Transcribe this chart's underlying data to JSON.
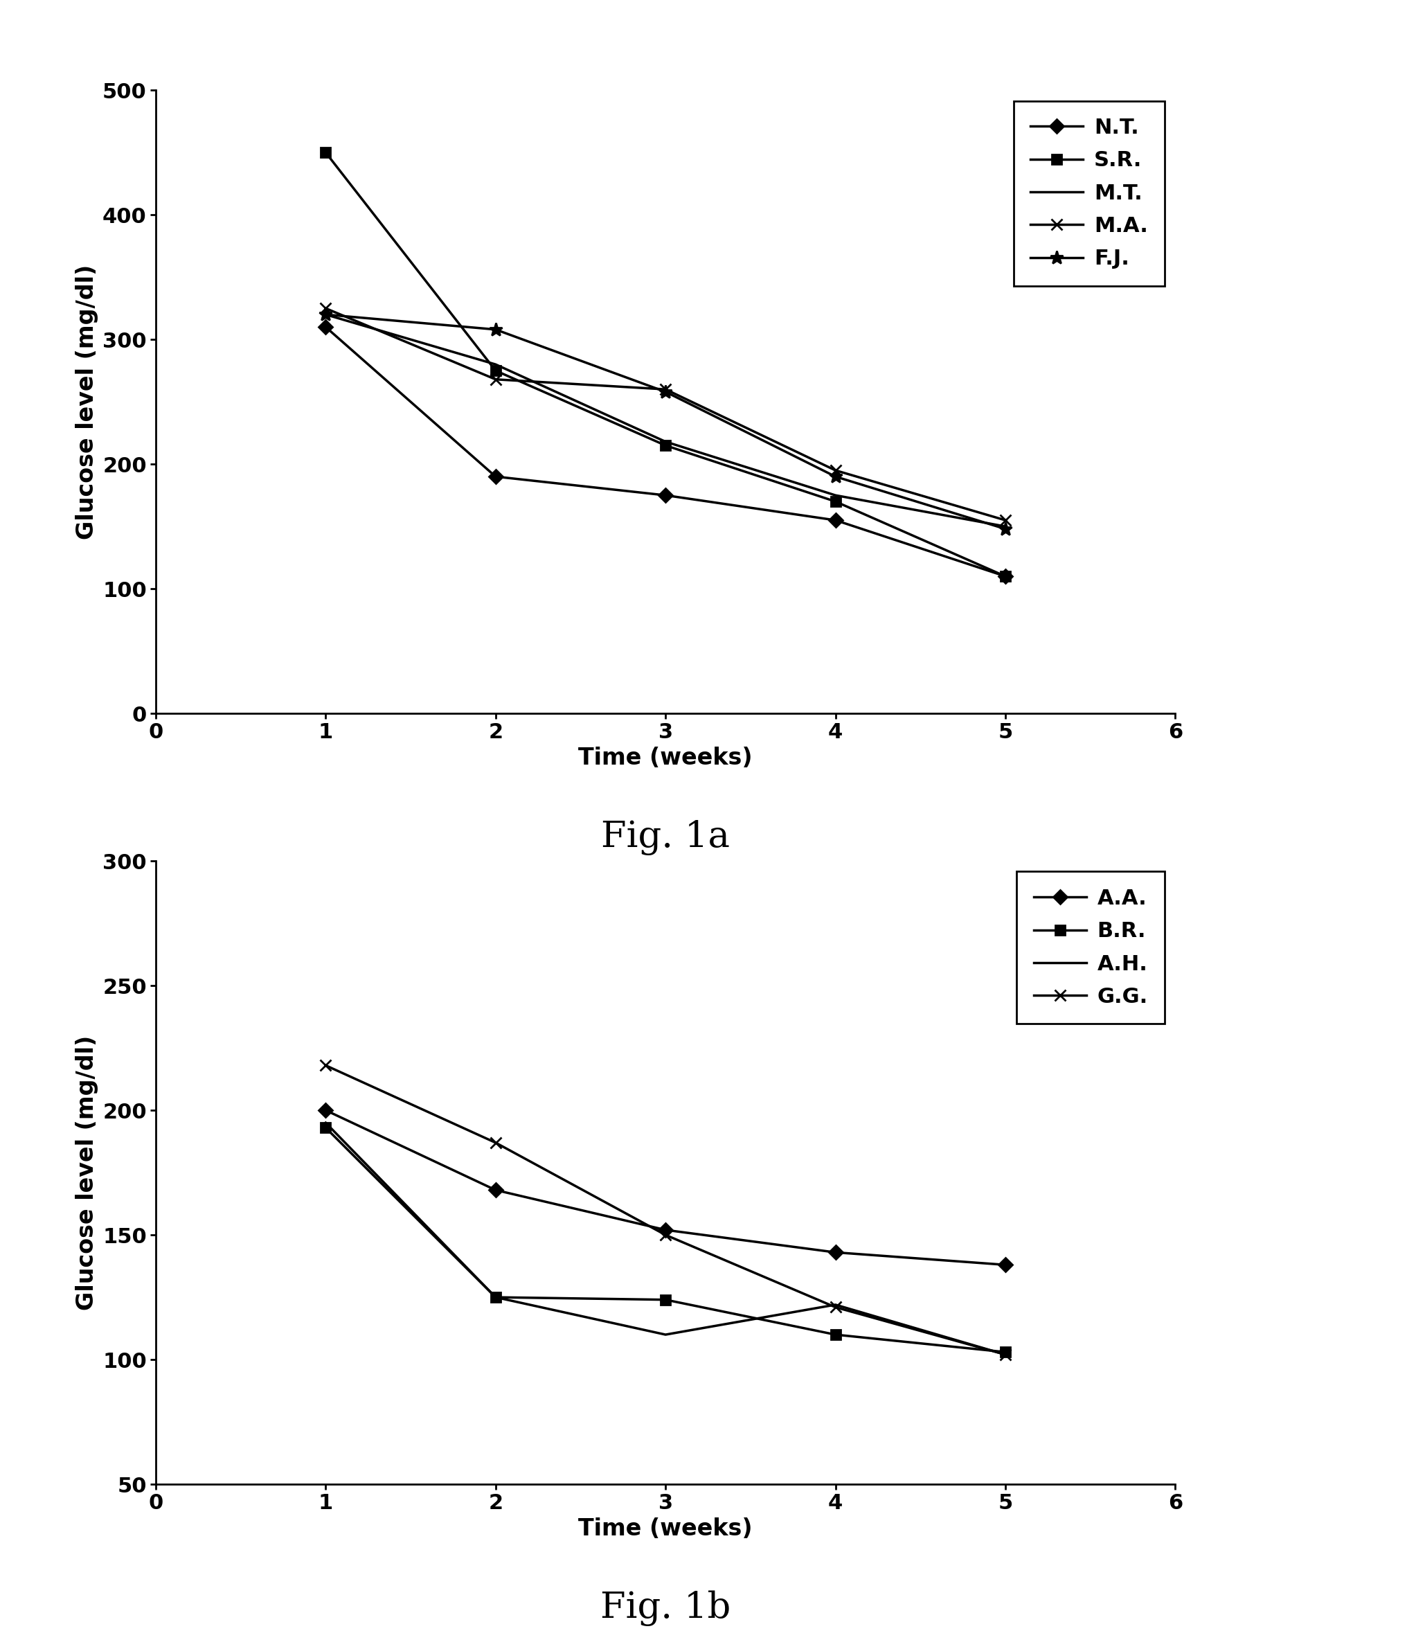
{
  "fig1a": {
    "title": "Fig. 1a",
    "xlabel": "Time (weeks)",
    "ylabel": "Glucose level (mg/dl)",
    "xlim": [
      0,
      6
    ],
    "ylim": [
      0,
      500
    ],
    "yticks": [
      0,
      100,
      200,
      300,
      400,
      500
    ],
    "xticks": [
      0,
      1,
      2,
      3,
      4,
      5,
      6
    ],
    "series": [
      {
        "label": "N.T.",
        "x": [
          1,
          2,
          3,
          4,
          5
        ],
        "y": [
          310,
          190,
          175,
          155,
          110
        ],
        "marker": "D",
        "markersize": 10,
        "linewidth": 2.5,
        "color": "#000000"
      },
      {
        "label": "S.R.",
        "x": [
          1,
          2,
          3,
          4,
          5
        ],
        "y": [
          450,
          275,
          215,
          170,
          110
        ],
        "marker": "s",
        "markersize": 10,
        "linewidth": 2.5,
        "color": "#000000"
      },
      {
        "label": "M.T.",
        "x": [
          1,
          2,
          3,
          4,
          5
        ],
        "y": [
          320,
          280,
          218,
          175,
          150
        ],
        "marker": null,
        "markersize": 0,
        "linewidth": 2.5,
        "color": "#000000"
      },
      {
        "label": "M.A.",
        "x": [
          1,
          2,
          3,
          4,
          5
        ],
        "y": [
          325,
          268,
          260,
          195,
          155
        ],
        "marker": "x",
        "markersize": 12,
        "linewidth": 2.5,
        "color": "#000000"
      },
      {
        "label": "F.J.",
        "x": [
          1,
          2,
          3,
          4,
          5
        ],
        "y": [
          320,
          308,
          258,
          190,
          148
        ],
        "marker": "*",
        "markersize": 14,
        "linewidth": 2.5,
        "color": "#000000"
      }
    ]
  },
  "fig1b": {
    "title": "Fig. 1b",
    "xlabel": "Time (weeks)",
    "ylabel": "Glucose level (mg/dl)",
    "xlim": [
      0,
      6
    ],
    "ylim": [
      50,
      300
    ],
    "yticks": [
      50,
      100,
      150,
      200,
      250,
      300
    ],
    "xticks": [
      0,
      1,
      2,
      3,
      4,
      5,
      6
    ],
    "series": [
      {
        "label": "A.A.",
        "x": [
          1,
          2,
          3,
          4,
          5
        ],
        "y": [
          200,
          168,
          152,
          143,
          138
        ],
        "marker": "D",
        "markersize": 10,
        "linewidth": 2.5,
        "color": "#000000"
      },
      {
        "label": "B.R.",
        "x": [
          1,
          2,
          3,
          4,
          5
        ],
        "y": [
          193,
          125,
          124,
          110,
          103
        ],
        "marker": "s",
        "markersize": 10,
        "linewidth": 2.5,
        "color": "#000000"
      },
      {
        "label": "A.H.",
        "x": [
          1,
          2,
          3,
          4,
          5
        ],
        "y": [
          195,
          125,
          110,
          122,
          102
        ],
        "marker": null,
        "markersize": 0,
        "linewidth": 2.5,
        "color": "#000000"
      },
      {
        "label": "G.G.",
        "x": [
          1,
          2,
          3,
          4,
          5
        ],
        "y": [
          218,
          187,
          150,
          121,
          102
        ],
        "marker": "x",
        "markersize": 12,
        "linewidth": 2.5,
        "color": "#000000"
      }
    ]
  },
  "background_color": "#ffffff",
  "title_fontsize": 38,
  "label_fontsize": 24,
  "tick_fontsize": 22,
  "legend_fontsize": 22
}
